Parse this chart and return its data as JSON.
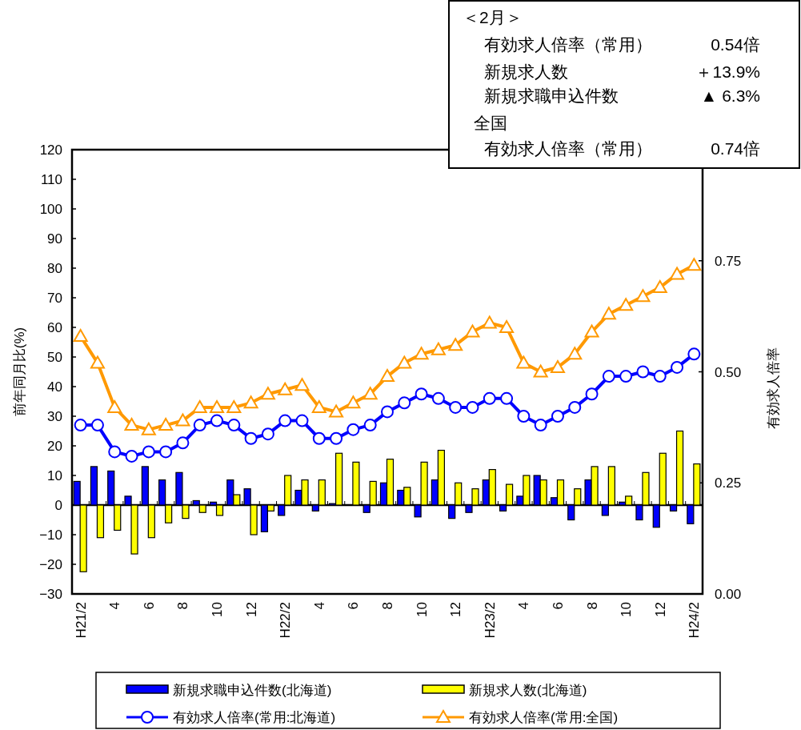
{
  "chart_data": {
    "type": "bar",
    "categories": [
      "H21/2",
      null,
      "4",
      null,
      "6",
      null,
      "8",
      null,
      "10",
      null,
      "12",
      null,
      "H22/2",
      null,
      "4",
      null,
      "6",
      null,
      "8",
      null,
      "10",
      null,
      "12",
      null,
      "H23/2",
      null,
      "4",
      null,
      "6",
      null,
      "8",
      null,
      "10",
      null,
      "12",
      null,
      "H24/2"
    ],
    "ylabel": "前年同月比(%)",
    "y2label": "有効求人倍率",
    "ylim": [
      -30,
      120
    ],
    "yticks": [
      -30,
      -20,
      -10,
      0,
      10,
      20,
      30,
      40,
      50,
      60,
      70,
      80,
      90,
      100,
      110,
      120
    ],
    "y2lim": [
      0,
      1.0
    ],
    "y2ticks": [
      {
        "value": 0,
        "label": "0.00"
      },
      {
        "value": 0.25,
        "label": "0.25"
      },
      {
        "value": 0.5,
        "label": "0.50"
      },
      {
        "value": 0.75,
        "label": "0.75"
      }
    ],
    "legend": "bottom",
    "series": [
      {
        "name": "新規求職申込件数(北海道)",
        "color": "#0000ff",
        "values": [
          8,
          13,
          11.5,
          3,
          13,
          8.5,
          11,
          1.5,
          1,
          8.5,
          5.5,
          -9,
          -3.5,
          5,
          -2,
          0.5,
          0,
          -2.5,
          7.5,
          5,
          -4,
          8.5,
          -4.5,
          -2.5,
          8.5,
          -2,
          3,
          10,
          2.5,
          -5,
          8.5,
          -3.5,
          1,
          -5,
          -7.5,
          -2,
          -6.3
        ]
      },
      {
        "name": "新規求人数(北海道)",
        "color": "#ffff00",
        "values": [
          -22.5,
          -11,
          -8.5,
          -16.5,
          -11,
          -6,
          -4.5,
          -2.5,
          -3.5,
          3.5,
          -10,
          -2,
          10,
          8.5,
          8.5,
          17.5,
          14.5,
          8,
          15.5,
          6,
          14.5,
          18.5,
          7.5,
          5.5,
          12,
          7,
          10,
          8.5,
          8.5,
          5.5,
          13,
          13,
          3,
          11,
          17.5,
          25,
          13.9
        ]
      },
      {
        "name": "有効求人倍率(常用:北海道)",
        "type": "line",
        "axis": "y2",
        "color": "#0000ff",
        "marker": "circle",
        "values": [
          0.38,
          0.38,
          0.32,
          0.31,
          0.32,
          0.32,
          0.34,
          0.38,
          0.39,
          0.38,
          0.35,
          0.36,
          0.39,
          0.39,
          0.35,
          0.35,
          0.37,
          0.38,
          0.41,
          0.43,
          0.45,
          0.44,
          0.42,
          0.42,
          0.44,
          0.44,
          0.4,
          0.38,
          0.4,
          0.42,
          0.45,
          0.49,
          0.49,
          0.5,
          0.49,
          0.51,
          0.54
        ]
      },
      {
        "name": "有効求人倍率(常用:全国)",
        "type": "line",
        "axis": "y2",
        "color": "#ff9900",
        "marker": "triangle",
        "values": [
          0.58,
          0.52,
          0.42,
          0.38,
          0.37,
          0.38,
          0.39,
          0.42,
          0.42,
          0.42,
          0.43,
          0.45,
          0.46,
          0.47,
          0.42,
          0.41,
          0.43,
          0.45,
          0.49,
          0.52,
          0.54,
          0.55,
          0.56,
          0.59,
          0.61,
          0.6,
          0.52,
          0.5,
          0.51,
          0.54,
          0.59,
          0.63,
          0.65,
          0.67,
          0.69,
          0.72,
          0.74
        ]
      }
    ],
    "annotations": [
      "＜2月＞",
      "有効求人倍率（常用）",
      "0.54倍",
      "新規求人数",
      "＋13.9%",
      "新規求職申込件数",
      "▲ 6.3%",
      "全国",
      "有効求人倍率（常用）",
      "0.74倍"
    ]
  }
}
